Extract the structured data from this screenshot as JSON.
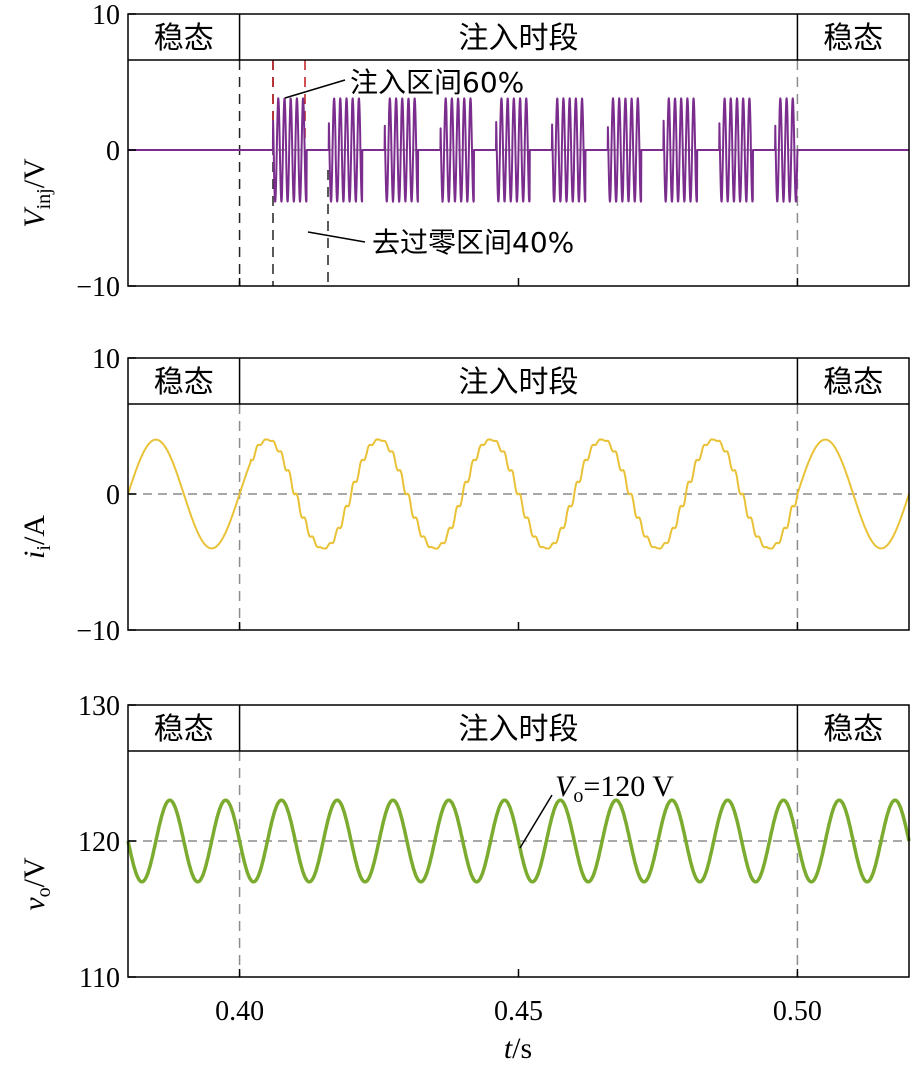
{
  "chart_data": [
    {
      "type": "line",
      "xlim": [
        0.38,
        0.52
      ],
      "ylim": [
        -10,
        10
      ],
      "yticks": [
        {
          "value": 10,
          "label": "10"
        },
        {
          "value": 0,
          "label": "0"
        },
        {
          "value": -10,
          "label": "−10"
        }
      ],
      "ylabel": {
        "main": "V",
        "sub": "inj",
        "unit": "/V"
      },
      "band_labels": {
        "left": "稳态",
        "middle": "注入时段",
        "right": "稳态"
      },
      "band_bounds": [
        0.4,
        0.5
      ],
      "series": [
        {
          "color": "#7b2d8e",
          "description_values": {
            "steady_value": 0,
            "injection_start": 0.406,
            "period": 0.01,
            "active_fraction": 0.6,
            "amplitude": 3.8
          }
        }
      ],
      "annotations": [
        {
          "text": "注入区间60%"
        },
        {
          "text": "去过零区间40%"
        }
      ]
    },
    {
      "type": "line",
      "xlim": [
        0.38,
        0.52
      ],
      "ylim": [
        -10,
        10
      ],
      "yticks": [
        {
          "value": 10,
          "label": "10"
        },
        {
          "value": 0,
          "label": "0"
        },
        {
          "value": -10,
          "label": "−10"
        }
      ],
      "ylabel": {
        "main": "i",
        "sub": "i",
        "unit": "/A"
      },
      "band_labels": {
        "left": "稳态",
        "middle": "注入时段",
        "right": "稳态"
      },
      "band_bounds": [
        0.4,
        0.5
      ],
      "series": [
        {
          "color": "#e9c237",
          "amplitude": 4,
          "frequency": 50,
          "offset": 0
        }
      ]
    },
    {
      "type": "line",
      "xlim": [
        0.38,
        0.52
      ],
      "ylim": [
        110,
        130
      ],
      "yticks": [
        {
          "value": 130,
          "label": "130"
        },
        {
          "value": 120,
          "label": "120"
        },
        {
          "value": 110,
          "label": "110"
        }
      ],
      "xticks": [
        {
          "value": 0.4,
          "label": "0.40"
        },
        {
          "value": 0.45,
          "label": "0.45"
        },
        {
          "value": 0.5,
          "label": "0.50"
        }
      ],
      "xlabel": {
        "main": "t",
        "unit": "/s"
      },
      "ylabel": {
        "main": "v",
        "sub": "o",
        "unit": "/V"
      },
      "band_labels": {
        "left": "稳态",
        "middle": "注入时段",
        "right": "稳态"
      },
      "band_bounds": [
        0.4,
        0.5
      ],
      "series": [
        {
          "color": "#7bab2f",
          "amplitude": 3,
          "frequency": 100,
          "offset": 120
        }
      ],
      "annotations": [
        {
          "main": "V",
          "sub": "o",
          "text": "=120 V"
        }
      ]
    }
  ]
}
